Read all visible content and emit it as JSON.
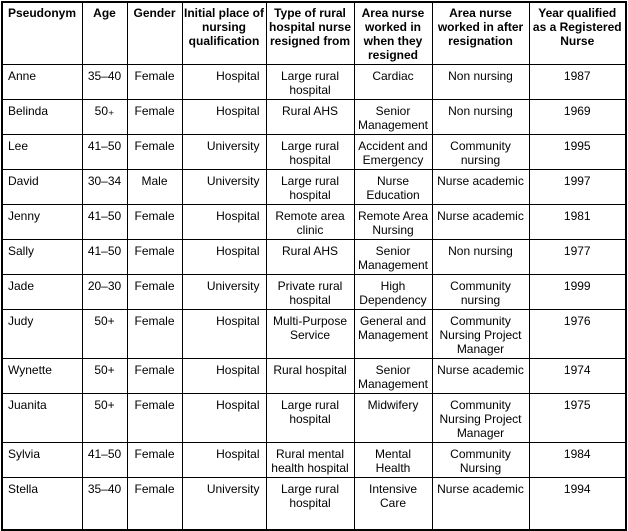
{
  "table": {
    "columns": [
      {
        "label": "Pseudonym"
      },
      {
        "label": "Age"
      },
      {
        "label": "Gender"
      },
      {
        "label": "Initial place of nursing qualification"
      },
      {
        "label": "Type of rural hospital nurse resigned from"
      },
      {
        "label": "Area nurse worked in when they resigned"
      },
      {
        "label": "Area nurse worked in after resignation"
      },
      {
        "label": "Year qualified as a Registered Nurse"
      }
    ],
    "rows": [
      [
        "Anne",
        "35–40",
        "Female",
        "Hospital",
        "Large rural hospital",
        "Cardiac",
        "Non nursing",
        "1987"
      ],
      [
        "Belinda",
        "50₊",
        "Female",
        "Hospital",
        "Rural AHS",
        "Senior Management",
        "Non nursing",
        "1969"
      ],
      [
        "Lee",
        "41–50",
        "Female",
        "University",
        "Large rural hospital",
        "Accident and Emergency",
        "Community nursing",
        "1995"
      ],
      [
        "David",
        "30–34",
        "Male",
        "University",
        "Large rural hospital",
        "Nurse Education",
        "Nurse academic",
        "1997"
      ],
      [
        "Jenny",
        "41–50",
        "Female",
        "Hospital",
        "Remote area clinic",
        "Remote Area Nursing",
        "Nurse academic",
        "1981"
      ],
      [
        "Sally",
        "41–50",
        "Female",
        "Hospital",
        "Rural AHS",
        "Senior Management",
        "Non nursing",
        "1977"
      ],
      [
        "Jade",
        "20–30",
        "Female",
        "University",
        "Private rural hospital",
        "High Dependency",
        "Community nursing",
        "1999"
      ],
      [
        "Judy",
        "50+",
        "Female",
        "Hospital",
        "Multi-Purpose Service",
        "General and Management",
        "Community Nursing Project Manager",
        "1976"
      ],
      [
        "Wynette",
        "50+",
        "Female",
        "Hospital",
        "Rural hospital",
        "Senior Management",
        "Nurse academic",
        "1974"
      ],
      [
        "Juanita",
        "50+",
        "Female",
        "Hospital",
        "Large rural hospital",
        "Midwifery",
        "Community Nursing Project Manager",
        "1975"
      ],
      [
        "Sylvia",
        "41–50",
        "Female",
        "Hospital",
        "Rural mental health hospital",
        "Mental Health",
        "Community Nursing",
        "1984"
      ],
      [
        "Stella",
        "35–40",
        "Female",
        "University",
        "Large rural hospital",
        "Intensive Care",
        "Nurse academic",
        "1994"
      ]
    ]
  },
  "colors": {
    "text": "#000000",
    "border": "#000000",
    "background": "#ffffff"
  }
}
